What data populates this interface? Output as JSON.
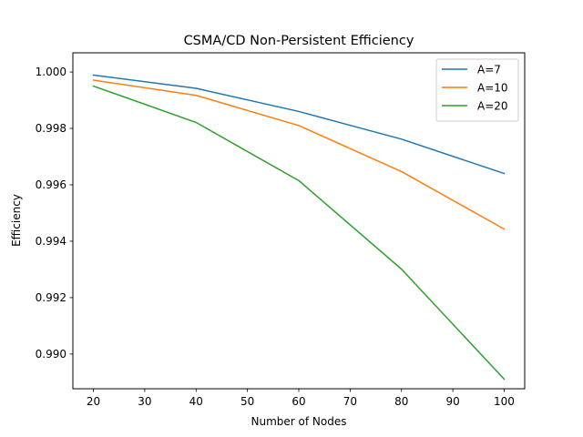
{
  "chart_data": {
    "type": "line",
    "title": "CSMA/CD Non-Persistent Efficiency",
    "xlabel": "Number of Nodes",
    "ylabel": "Efficiency",
    "x": [
      20,
      40,
      60,
      80,
      100
    ],
    "series": [
      {
        "name": "A=7",
        "color": "#1f77b4",
        "values": [
          0.99989,
          0.99942,
          0.9986,
          0.99762,
          0.9964
        ]
      },
      {
        "name": "A=10",
        "color": "#ff7f0e",
        "values": [
          0.99971,
          0.99917,
          0.9981,
          0.99647,
          0.99443
        ]
      },
      {
        "name": "A=20",
        "color": "#2ca02c",
        "values": [
          0.9995,
          0.99821,
          0.99615,
          0.99301,
          0.98911
        ]
      }
    ],
    "xlim": [
      16,
      104
    ],
    "ylim": [
      0.98877,
      1.00068
    ],
    "xticks": [
      20,
      30,
      40,
      50,
      60,
      70,
      80,
      90,
      100
    ],
    "xtick_labels": [
      "20",
      "30",
      "40",
      "50",
      "60",
      "70",
      "80",
      "90",
      "100"
    ],
    "yticks": [
      0.99,
      0.992,
      0.994,
      0.996,
      0.998,
      1.0
    ],
    "ytick_labels": [
      "0.990",
      "0.992",
      "0.994",
      "0.996",
      "0.998",
      "1.000"
    ],
    "grid": false,
    "legend_position": "top-right"
  }
}
